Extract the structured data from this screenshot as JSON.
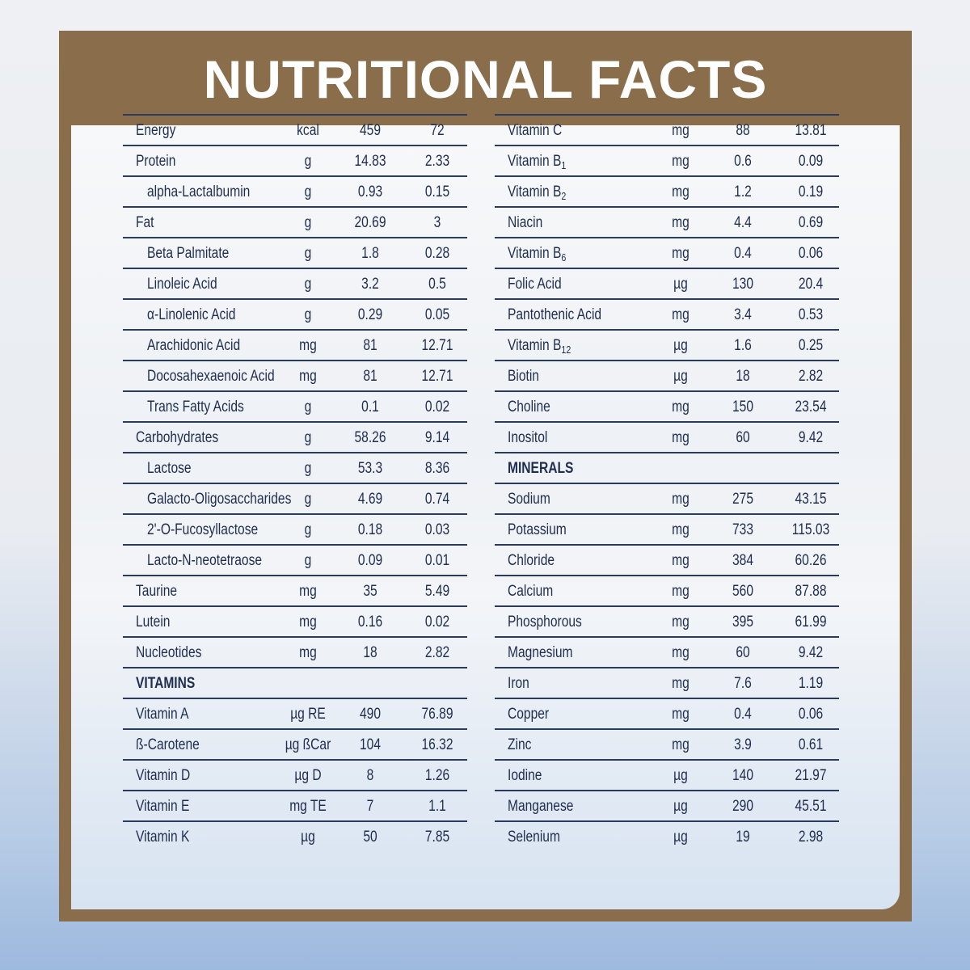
{
  "title": "NUTRITIONAL FACTS",
  "tables": [
    {
      "rows": [
        {
          "name": "Energy",
          "unit": "kcal",
          "values": [
            "459",
            "72"
          ]
        },
        {
          "name": "Protein",
          "unit": "g",
          "values": [
            "14.83",
            "2.33"
          ]
        },
        {
          "name": "alpha-Lactalbumin",
          "unit": "g",
          "values": [
            "0.93",
            "0.15"
          ],
          "indent": true
        },
        {
          "name": "Fat",
          "unit": "g",
          "values": [
            "20.69",
            "3"
          ]
        },
        {
          "name": "Beta Palmitate",
          "unit": "g",
          "values": [
            "1.8",
            "0.28"
          ],
          "indent": true
        },
        {
          "name": "Linoleic Acid",
          "unit": "g",
          "values": [
            "3.2",
            "0.5"
          ],
          "indent": true
        },
        {
          "name": "α-Linolenic Acid",
          "unit": "g",
          "values": [
            "0.29",
            "0.05"
          ],
          "indent": true
        },
        {
          "name": "Arachidonic Acid",
          "unit": "mg",
          "values": [
            "81",
            "12.71"
          ],
          "indent": true
        },
        {
          "name": "Docosahexaenoic Acid",
          "unit": "mg",
          "values": [
            "81",
            "12.71"
          ],
          "indent": true
        },
        {
          "name": "Trans Fatty Acids",
          "unit": "g",
          "values": [
            "0.1",
            "0.02"
          ],
          "indent": true
        },
        {
          "name": "Carbohydrates",
          "unit": "g",
          "values": [
            "58.26",
            "9.14"
          ]
        },
        {
          "name": "Lactose",
          "unit": "g",
          "values": [
            "53.3",
            "8.36"
          ],
          "indent": true
        },
        {
          "name": "Galacto-Oligosaccharides",
          "unit": "g",
          "values": [
            "4.69",
            "0.74"
          ],
          "indent": true
        },
        {
          "name": "2'-O-Fucosyllactose",
          "unit": "g",
          "values": [
            "0.18",
            "0.03"
          ],
          "indent": true
        },
        {
          "name": "Lacto-N-neotetraose",
          "unit": "g",
          "values": [
            "0.09",
            "0.01"
          ],
          "indent": true
        },
        {
          "name": "Taurine",
          "unit": "mg",
          "values": [
            "35",
            "5.49"
          ]
        },
        {
          "name": "Lutein",
          "unit": "mg",
          "values": [
            "0.16",
            "0.02"
          ]
        },
        {
          "name": "Nucleotides",
          "unit": "mg",
          "values": [
            "18",
            "2.82"
          ]
        },
        {
          "section": "VITAMINS"
        },
        {
          "name": "Vitamin A",
          "unit": "µg RE",
          "values": [
            "490",
            "76.89"
          ]
        },
        {
          "name": "ß-Carotene",
          "unit": "µg ßCar",
          "values": [
            "104",
            "16.32"
          ]
        },
        {
          "name": "Vitamin D",
          "unit": "µg D",
          "values": [
            "8",
            "1.26"
          ]
        },
        {
          "name": "Vitamin E",
          "unit": "mg TE",
          "values": [
            "7",
            "1.1"
          ]
        },
        {
          "name": "Vitamin K",
          "unit": "µg",
          "values": [
            "50",
            "7.85"
          ]
        }
      ]
    },
    {
      "rows": [
        {
          "name": "Vitamin C",
          "unit": "mg",
          "values": [
            "88",
            "13.81"
          ]
        },
        {
          "name": "Vitamin B",
          "sub": "1",
          "unit": "mg",
          "values": [
            "0.6",
            "0.09"
          ]
        },
        {
          "name": "Vitamin B",
          "sub": "2",
          "unit": "mg",
          "values": [
            "1.2",
            "0.19"
          ]
        },
        {
          "name": "Niacin",
          "unit": "mg",
          "values": [
            "4.4",
            "0.69"
          ]
        },
        {
          "name": "Vitamin B",
          "sub": "6",
          "unit": "mg",
          "values": [
            "0.4",
            "0.06"
          ]
        },
        {
          "name": "Folic Acid",
          "unit": "µg",
          "values": [
            "130",
            "20.4"
          ]
        },
        {
          "name": "Pantothenic Acid",
          "unit": "mg",
          "values": [
            "3.4",
            "0.53"
          ]
        },
        {
          "name": "Vitamin B",
          "sub": "12",
          "unit": "µg",
          "values": [
            "1.6",
            "0.25"
          ]
        },
        {
          "name": "Biotin",
          "unit": "µg",
          "values": [
            "18",
            "2.82"
          ]
        },
        {
          "name": "Choline",
          "unit": "mg",
          "values": [
            "150",
            "23.54"
          ]
        },
        {
          "name": "Inositol",
          "unit": "mg",
          "values": [
            "60",
            "9.42"
          ]
        },
        {
          "section": "MINERALS"
        },
        {
          "name": "Sodium",
          "unit": "mg",
          "values": [
            "275",
            "43.15"
          ]
        },
        {
          "name": "Potassium",
          "unit": "mg",
          "values": [
            "733",
            "115.03"
          ]
        },
        {
          "name": "Chloride",
          "unit": "mg",
          "values": [
            "384",
            "60.26"
          ]
        },
        {
          "name": "Calcium",
          "unit": "mg",
          "values": [
            "560",
            "87.88"
          ]
        },
        {
          "name": "Phosphorous",
          "unit": "mg",
          "values": [
            "395",
            "61.99"
          ]
        },
        {
          "name": "Magnesium",
          "unit": "mg",
          "values": [
            "60",
            "9.42"
          ]
        },
        {
          "name": "Iron",
          "unit": "mg",
          "values": [
            "7.6",
            "1.19"
          ]
        },
        {
          "name": "Copper",
          "unit": "mg",
          "values": [
            "0.4",
            "0.06"
          ]
        },
        {
          "name": "Zinc",
          "unit": "mg",
          "values": [
            "3.9",
            "0.61"
          ]
        },
        {
          "name": "Iodine",
          "unit": "µg",
          "values": [
            "140",
            "21.97"
          ]
        },
        {
          "name": "Manganese",
          "unit": "µg",
          "values": [
            "290",
            "45.51"
          ]
        },
        {
          "name": "Selenium",
          "unit": "µg",
          "values": [
            "19",
            "2.98"
          ]
        }
      ]
    }
  ]
}
